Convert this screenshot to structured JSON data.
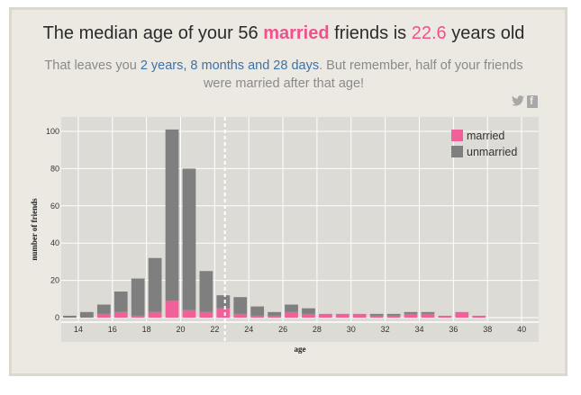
{
  "headline": {
    "prefix": "The median age of your 56",
    "married": "married",
    "middle": "friends is",
    "median": "22.6",
    "suffix": "years old"
  },
  "subtitle": {
    "prefix": "That leaves you",
    "duration": "2 years, 8 months and 28 days",
    "suffix": ". But remember, half of your friends were married after that age!"
  },
  "share": {
    "twitter_icon": "twitter-icon",
    "facebook_icon": "facebook-icon",
    "facebook_glyph": "f"
  },
  "colors": {
    "married": "#f2609a",
    "unmarried": "#7f7f7f",
    "plot_bg": "#dddbd6",
    "median_line": "#ffffff"
  },
  "chart_data": {
    "type": "bar",
    "stacked": true,
    "xlabel": "age",
    "ylabel": "number of friends",
    "xlim": [
      13,
      41
    ],
    "ylim": [
      -2,
      107
    ],
    "x_ticks": [
      14,
      16,
      18,
      20,
      22,
      24,
      26,
      28,
      30,
      32,
      34,
      36,
      38,
      40
    ],
    "y_ticks": [
      0,
      20,
      40,
      60,
      80,
      100
    ],
    "median_line_x": 22.6,
    "legend": {
      "position": "top-right",
      "entries": [
        "married",
        "unmarried"
      ]
    },
    "grid": true,
    "ages": [
      13.5,
      14.5,
      15.5,
      16.5,
      17.5,
      18.5,
      19.5,
      20.5,
      21.5,
      22.5,
      23.5,
      24.5,
      25.5,
      26.5,
      27.5,
      28.5,
      29.5,
      30.5,
      31.5,
      32.5,
      33.5,
      34.5,
      35.5,
      36.5,
      37.5
    ],
    "series": [
      {
        "name": "married",
        "values": [
          0,
          0,
          2,
          3,
          1,
          3,
          9,
          4,
          3,
          5,
          2,
          1,
          1,
          3,
          2,
          2,
          2,
          2,
          1,
          1,
          2,
          2,
          1,
          3,
          1
        ]
      },
      {
        "name": "unmarried",
        "values": [
          1,
          3,
          5,
          11,
          20,
          29,
          92,
          76,
          22,
          7,
          9,
          5,
          2,
          4,
          3,
          0,
          0,
          0,
          1,
          1,
          1,
          1,
          0,
          0,
          0
        ]
      }
    ]
  }
}
